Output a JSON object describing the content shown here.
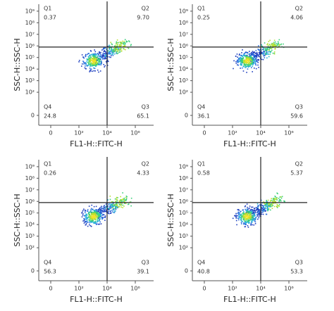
{
  "chart_data": [
    {
      "type": "quadrant",
      "x_label": "FL1-H::FITC-H",
      "y_label": "SSC-H::SSC-H",
      "xlim": [
        -0.85,
        7.3
      ],
      "ylim": [
        -0.85,
        9.6
      ],
      "gate_x": 4,
      "gate_y": 5.9,
      "xticks": [
        0,
        {
          "value": 2,
          "label": "10²"
        },
        {
          "value": 4,
          "label": "10⁴"
        },
        {
          "value": 6,
          "label": "10⁶"
        }
      ],
      "yticks": [
        0,
        {
          "value": 2,
          "label": "10²"
        },
        {
          "value": 3,
          "label": "10³"
        },
        {
          "value": 4,
          "label": "10⁴"
        },
        {
          "value": 5,
          "label": "10⁵"
        },
        {
          "value": 6,
          "label": "10⁶"
        },
        {
          "value": 7,
          "label": "10⁷"
        },
        {
          "value": 8,
          "label": "10⁸"
        },
        {
          "value": 9,
          "label": "10⁹"
        }
      ],
      "quadrants": [
        {
          "name": "Q1",
          "value": 0.37
        },
        {
          "name": "Q2",
          "value": 9.7,
          "value_label": "9.70"
        },
        {
          "name": "Q3",
          "value": 65.1
        },
        {
          "name": "Q4",
          "value": 24.8
        }
      ]
    },
    {
      "type": "quadrant",
      "x_label": "FL1-H::FITC-H",
      "y_label": "SSC-H::SSC-H",
      "xlim": [
        -0.85,
        7.3
      ],
      "ylim": [
        -0.85,
        9.6
      ],
      "gate_x": 4,
      "gate_y": 5.9,
      "xticks": [
        0,
        {
          "value": 2,
          "label": "10²"
        },
        {
          "value": 4,
          "label": "10⁴"
        },
        {
          "value": 6,
          "label": "10⁶"
        }
      ],
      "yticks": [
        0,
        {
          "value": 2,
          "label": "10²"
        },
        {
          "value": 3,
          "label": "10³"
        },
        {
          "value": 4,
          "label": "10⁴"
        },
        {
          "value": 5,
          "label": "10⁵"
        },
        {
          "value": 6,
          "label": "10⁶"
        },
        {
          "value": 7,
          "label": "10⁷"
        },
        {
          "value": 8,
          "label": "10⁸"
        },
        {
          "value": 9,
          "label": "10⁹"
        }
      ],
      "quadrants": [
        {
          "name": "Q1",
          "value": 0.25
        },
        {
          "name": "Q2",
          "value": 4.06
        },
        {
          "name": "Q3",
          "value": 59.6
        },
        {
          "name": "Q4",
          "value": 36.1
        }
      ]
    },
    {
      "type": "quadrant",
      "x_label": "FL1-H::FITC-H",
      "y_label": "SSC-H::SSC-H",
      "xlim": [
        -0.85,
        7.3
      ],
      "ylim": [
        -0.85,
        9.6
      ],
      "gate_x": 4,
      "gate_y": 5.9,
      "xticks": [
        0,
        {
          "value": 2,
          "label": "10²"
        },
        {
          "value": 4,
          "label": "10⁴"
        },
        {
          "value": 6,
          "label": "10⁶"
        }
      ],
      "yticks": [
        0,
        {
          "value": 2,
          "label": "10²"
        },
        {
          "value": 3,
          "label": "10³"
        },
        {
          "value": 4,
          "label": "10⁴"
        },
        {
          "value": 5,
          "label": "10⁵"
        },
        {
          "value": 6,
          "label": "10⁶"
        },
        {
          "value": 7,
          "label": "10⁷"
        },
        {
          "value": 8,
          "label": "10⁸"
        },
        {
          "value": 9,
          "label": "10⁹"
        }
      ],
      "quadrants": [
        {
          "name": "Q1",
          "value": 0.26
        },
        {
          "name": "Q2",
          "value": 4.33
        },
        {
          "name": "Q3",
          "value": 39.1
        },
        {
          "name": "Q4",
          "value": 56.3
        }
      ]
    },
    {
      "type": "quadrant",
      "x_label": "FL1-H::FITC-H",
      "y_label": "SSC-H::SSC-H",
      "xlim": [
        -0.85,
        7.3
      ],
      "ylim": [
        -0.85,
        9.6
      ],
      "gate_x": 4,
      "gate_y": 5.9,
      "xticks": [
        0,
        {
          "value": 2,
          "label": "10²"
        },
        {
          "value": 4,
          "label": "10⁴"
        },
        {
          "value": 6,
          "label": "10⁶"
        }
      ],
      "yticks": [
        0,
        {
          "value": 2,
          "label": "10²"
        },
        {
          "value": 3,
          "label": "10³"
        },
        {
          "value": 4,
          "label": "10⁴"
        },
        {
          "value": 5,
          "label": "10⁵"
        },
        {
          "value": 6,
          "label": "10⁶"
        },
        {
          "value": 7,
          "label": "10⁷"
        },
        {
          "value": 8,
          "label": "10⁸"
        },
        {
          "value": 9,
          "label": "10⁹"
        }
      ],
      "quadrants": [
        {
          "name": "Q1",
          "value": 0.58
        },
        {
          "name": "Q2",
          "value": 5.37
        },
        {
          "name": "Q3",
          "value": 53.3
        },
        {
          "name": "Q4",
          "value": 40.8
        }
      ]
    }
  ]
}
